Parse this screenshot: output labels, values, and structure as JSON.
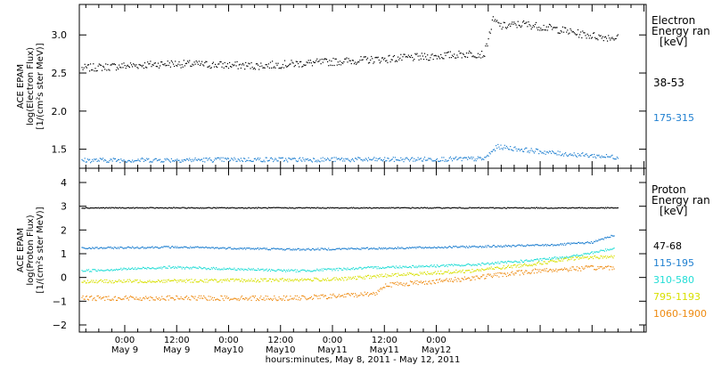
{
  "chart_data": [
    {
      "type": "scatter",
      "panel": "electron",
      "ylabel": [
        "ACE EPAM",
        "log(Electron Flux)",
        "[1/(cm²s ster MeV)]"
      ],
      "ylim": [
        1.25,
        3.4
      ],
      "yticks": [
        1.5,
        2.0,
        2.5,
        3.0
      ],
      "ytick_labels": [
        "1.5",
        "2.0",
        "2.5",
        "3.0"
      ],
      "legend_title": [
        "Electron",
        "Energy ran",
        "[keV]"
      ],
      "series": [
        {
          "name": "38-53",
          "color": "#000000",
          "profile": [
            [
              -10,
              2.57
            ],
            [
              10,
              2.63
            ],
            [
              30,
              2.6
            ],
            [
              50,
              2.66
            ],
            [
              70,
              2.72
            ],
            [
              80,
              2.76
            ],
            [
              83,
              2.75
            ],
            [
              85,
              3.2
            ],
            [
              87,
              3.12
            ],
            [
              92,
              3.15
            ],
            [
              100,
              3.08
            ],
            [
              105,
              3.02
            ],
            [
              110,
              2.98
            ],
            [
              114,
              2.97
            ]
          ],
          "noise": 0.05
        },
        {
          "name": "175-315",
          "color": "#1e7fd0",
          "profile": [
            [
              -10,
              1.36
            ],
            [
              30,
              1.37
            ],
            [
              60,
              1.37
            ],
            [
              83,
              1.38
            ],
            [
              86,
              1.54
            ],
            [
              92,
              1.5
            ],
            [
              100,
              1.45
            ],
            [
              114,
              1.4
            ]
          ],
          "noise": 0.03
        }
      ]
    },
    {
      "type": "scatter",
      "panel": "proton",
      "ylabel": [
        "ACE EPAM",
        "log(Proton Flux)",
        "[1/(cm²s ster MeV)]"
      ],
      "ylim": [
        -2.3,
        4.6
      ],
      "yticks": [
        -2,
        -1,
        0,
        1,
        2,
        3,
        4
      ],
      "ytick_labels": [
        "−2",
        "−1",
        "0",
        "1",
        "2",
        "3",
        "4"
      ],
      "legend_title": [
        "Proton",
        "Energy ran",
        "[keV]"
      ],
      "series": [
        {
          "name": "47-68",
          "color": "#000000",
          "profile": [
            [
              -10,
              2.95
            ],
            [
              110,
              2.95
            ],
            [
              114,
              2.95
            ]
          ],
          "noise": 0.02
        },
        {
          "name": "115-195",
          "color": "#1e7fd0",
          "profile": [
            [
              -10,
              1.25
            ],
            [
              10,
              1.3
            ],
            [
              40,
              1.2
            ],
            [
              60,
              1.25
            ],
            [
              90,
              1.35
            ],
            [
              100,
              1.4
            ],
            [
              108,
              1.5
            ],
            [
              113,
              1.8
            ]
          ],
          "noise": 0.04
        },
        {
          "name": "310-580",
          "color": "#22ddd6",
          "profile": [
            [
              -10,
              0.3
            ],
            [
              10,
              0.45
            ],
            [
              40,
              0.3
            ],
            [
              60,
              0.45
            ],
            [
              80,
              0.55
            ],
            [
              95,
              0.75
            ],
            [
              105,
              0.95
            ],
            [
              113,
              1.25
            ]
          ],
          "noise": 0.05
        },
        {
          "name": "795-1193",
          "color": "#d8e000",
          "profile": [
            [
              -10,
              -0.15
            ],
            [
              30,
              -0.1
            ],
            [
              50,
              -0.05
            ],
            [
              60,
              0.1
            ],
            [
              80,
              0.3
            ],
            [
              95,
              0.6
            ],
            [
              105,
              0.85
            ],
            [
              113,
              0.9
            ]
          ],
          "noise": 0.07
        },
        {
          "name": "1060-1900",
          "color": "#ee8a10",
          "profile": [
            [
              -10,
              -0.85
            ],
            [
              40,
              -0.85
            ],
            [
              50,
              -0.75
            ],
            [
              58,
              -0.65
            ],
            [
              60,
              -0.3
            ],
            [
              75,
              -0.1
            ],
            [
              85,
              0.1
            ],
            [
              95,
              0.3
            ],
            [
              105,
              0.4
            ],
            [
              113,
              0.45
            ]
          ],
          "noise": 0.1
        }
      ]
    }
  ],
  "x_axis": {
    "xlabel": "hours:minutes, May 8, 2011 - May 12, 2011",
    "xlim_hours": [
      -10.5,
      120.5
    ],
    "ticks": [
      {
        "hour": 0,
        "time": "0:00",
        "date": "May 9"
      },
      {
        "hour": 12,
        "time": "12:00",
        "date": "May 9"
      },
      {
        "hour": 24,
        "time": "0:00",
        "date": "May10"
      },
      {
        "hour": 36,
        "time": "12:00",
        "date": "May10"
      },
      {
        "hour": 48,
        "time": "0:00",
        "date": "May11"
      },
      {
        "hour": 60,
        "time": "12:00",
        "date": "May11"
      },
      {
        "hour": 72,
        "time": "0:00",
        "date": "May12"
      }
    ]
  }
}
